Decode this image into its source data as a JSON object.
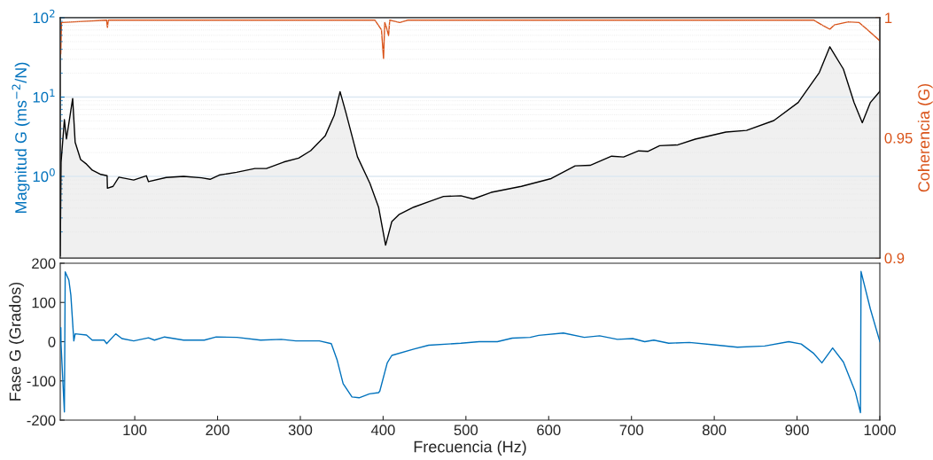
{
  "chart_data": [
    {
      "type": "area",
      "ylabel": "Magnitud G (ms$^{−2}$/N)",
      "y2label": "Coherencia (G)",
      "log": "y",
      "grid": "y",
      "tick_labels": "y",
      "xlim": [
        10,
        1000
      ],
      "ylim": [
        0.094,
        100
      ],
      "yticks": [
        {
          "value": 1,
          "label": "10$^{0}$"
        },
        {
          "value": 10,
          "label": "10$^{1}$"
        },
        {
          "value": 100,
          "label": "10$^{2}$"
        }
      ],
      "y2lim": [
        0.9,
        1
      ],
      "y2ticks": [
        0.9,
        0.95,
        1
      ],
      "series": [
        {
          "type": "area",
          "color": "#000000",
          "x": [
            10,
            11,
            15,
            17.5,
            25,
            28,
            34.6,
            41.7,
            48.6,
            59,
            66.6,
            67,
            73.8,
            80.8,
            98.7,
            114,
            116.6,
            138,
            159,
            180.7,
            191,
            202,
            223,
            245,
            259,
            280,
            298,
            312.5,
            330,
            341,
            348,
            355,
            369,
            384,
            394.5,
            403,
            410.5,
            419,
            437,
            455,
            473,
            494,
            508.7,
            530.5,
            567,
            603,
            632,
            650,
            676,
            690.5,
            708.7,
            719.7,
            734,
            756,
            777,
            814,
            839,
            872,
            901.4,
            926.9,
            939.6,
            956,
            968.8,
            978.8,
            988.6,
            1000
          ],
          "values": [
            0.1,
            1.5,
            5.2,
            2.97,
            9.6,
            2.7,
            1.63,
            1.43,
            1.2,
            1.06,
            1.02,
            0.71,
            0.75,
            0.98,
            0.9,
            1.02,
            0.86,
            0.97,
            1.0,
            0.96,
            0.92,
            1.04,
            1.13,
            1.26,
            1.26,
            1.52,
            1.7,
            2.11,
            3.24,
            5.9,
            11.7,
            6.4,
            1.77,
            0.82,
            0.41,
            0.136,
            0.27,
            0.33,
            0.41,
            0.48,
            0.56,
            0.57,
            0.52,
            0.63,
            0.75,
            0.94,
            1.36,
            1.38,
            1.8,
            1.76,
            2.1,
            2.07,
            2.44,
            2.5,
            2.95,
            3.62,
            3.8,
            5.06,
            8.56,
            20.4,
            43,
            22.5,
            8.56,
            4.75,
            8.56,
            11.8
          ]
        },
        {
          "type": "line",
          "axis": "y2",
          "color": "#d95319",
          "x": [
            10.6,
            11.5,
            66,
            67,
            68,
            390,
            398,
            400.5,
            402,
            404,
            406.6,
            408,
            420,
            430,
            920,
            930,
            939.6,
            945,
            962,
            975,
            985,
            1000
          ],
          "values": [
            0.985,
            0.998,
            0.999,
            0.996,
            0.999,
            0.999,
            0.995,
            0.983,
            0.998,
            0.996,
            0.9926,
            0.999,
            0.998,
            0.999,
            0.999,
            0.997,
            0.9952,
            0.997,
            0.9983,
            0.998,
            0.995,
            0.9904
          ]
        }
      ]
    },
    {
      "type": "line",
      "xlabel": "Frecuencia (Hz)",
      "ylabel": "Fase G (Grados)",
      "xlim": [
        10,
        1000
      ],
      "xticks": [
        100,
        200,
        300,
        400,
        500,
        600,
        700,
        800,
        900,
        1000
      ],
      "ylim": [
        -200,
        200
      ],
      "yticks": [
        -200,
        -100,
        0,
        100,
        200
      ],
      "series": [
        {
          "color": "#0072bd",
          "x": [
            10,
            10.7,
            11,
            15,
            16,
            20.4,
            22.8,
            26.4,
            28,
            41.7,
            48.6,
            63,
            66,
            77,
            84.5,
            98.7,
            116.6,
            123.8,
            136,
            159,
            184,
            198.4,
            223.5,
            252,
            277,
            294.6,
            323,
            337.4,
            344.5,
            351.7,
            362.4,
            371,
            383.5,
            394.5,
            396,
            405,
            410.5,
            437,
            455,
            494,
            516,
            538,
            556,
            577.6,
            588,
            617.7,
            643,
            661.5,
            683,
            701.5,
            716,
            727,
            745,
            770,
            799,
            828,
            861,
            890,
            905,
            919.6,
            930,
            943,
            956,
            970.5,
            976.6,
            977.3,
            988.6,
            1000
          ],
          "values": [
            0,
            36,
            -8,
            -179,
            178,
            157,
            119,
            2,
            20,
            17,
            4,
            4,
            -5,
            20,
            8,
            2,
            10,
            4,
            12,
            4,
            4,
            12,
            11,
            4,
            6,
            2,
            2,
            -5,
            -47,
            -107,
            -141,
            -143,
            -133,
            -130,
            -126,
            -54,
            -35,
            -19,
            -9,
            -4,
            0,
            0,
            9,
            11,
            16,
            22,
            11,
            15,
            6,
            8,
            0,
            4,
            -4,
            -2,
            -8,
            -14,
            -11,
            0,
            -6,
            -29,
            -54,
            -16,
            -52,
            -129,
            -181,
            179,
            83,
            0
          ]
        }
      ]
    }
  ]
}
